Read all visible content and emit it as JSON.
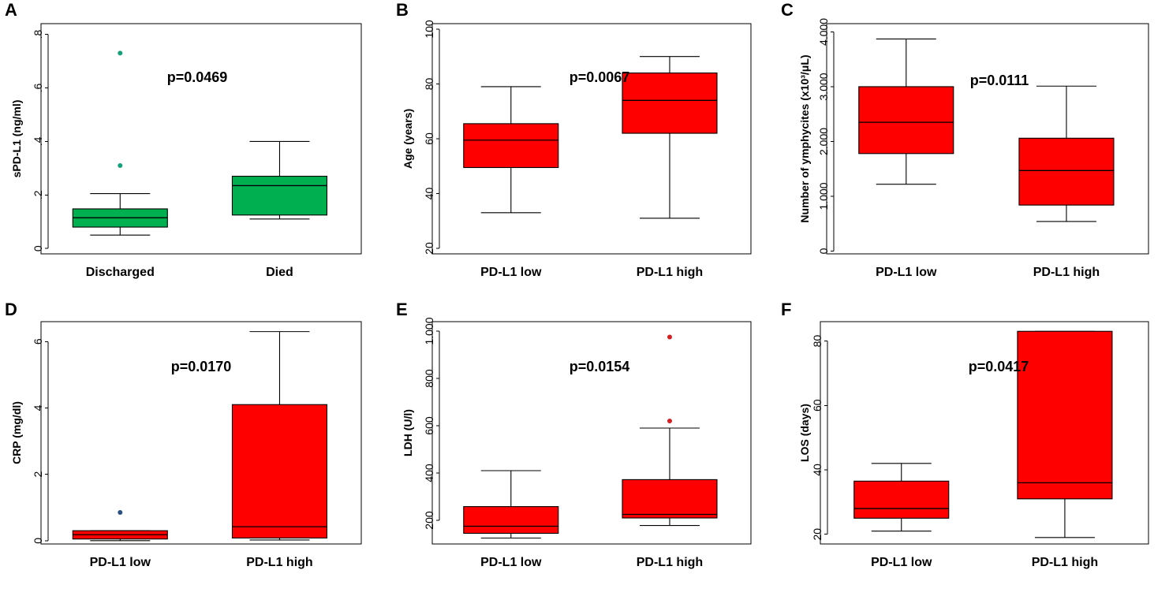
{
  "colors": {
    "green": "#00b050",
    "red": "#ff0000",
    "green_outlier": "#14a07a",
    "red_outlier": "#d42020",
    "blue_outlier": "#2a4f80"
  },
  "chart_data": [
    {
      "panel": "A",
      "type": "box",
      "ylabel": "sPD-L1 (ng/ml)",
      "ylim": [
        -0.02,
        0.84
      ],
      "ticks": [
        0,
        0.2,
        0.4,
        0.6,
        0.8
      ],
      "tick_labels": [
        "0",
        ".2",
        ".4",
        ".6",
        ".8"
      ],
      "categories": [
        "Discharged",
        "Died"
      ],
      "boxes": [
        {
          "min": 0.05,
          "q1": 0.08,
          "median": 0.115,
          "q3": 0.148,
          "max": 0.205,
          "outliers": [
            0.31,
            0.73
          ]
        },
        {
          "min": 0.11,
          "q1": 0.125,
          "median": 0.235,
          "q3": 0.27,
          "max": 0.4,
          "outliers": []
        }
      ],
      "fill": "green",
      "outlier_color": "green_outlier",
      "pvalue": "p=0.0469"
    },
    {
      "panel": "B",
      "type": "box",
      "ylabel": "Age (years)",
      "ylim": [
        18,
        102
      ],
      "ticks": [
        20,
        40,
        60,
        80,
        100
      ],
      "tick_labels": [
        "20",
        "40",
        "60",
        "80",
        "100"
      ],
      "categories": [
        "PD-L1 low",
        "PD-L1 high"
      ],
      "boxes": [
        {
          "min": 33,
          "q1": 49.5,
          "median": 59.5,
          "q3": 65.5,
          "max": 79,
          "outliers": []
        },
        {
          "min": 31,
          "q1": 62,
          "median": 74,
          "q3": 84,
          "max": 90,
          "outliers": []
        }
      ],
      "fill": "red",
      "outlier_color": "red_outlier",
      "pvalue": "p=0.0067"
    },
    {
      "panel": "C",
      "type": "box",
      "ylabel": "Number of ymphycites (x10³/μL)",
      "ylim": [
        -50,
        4150
      ],
      "ticks": [
        0,
        1000,
        2000,
        3000,
        4000
      ],
      "tick_labels": [
        "0",
        "1.000",
        "2.000",
        "3.000",
        "4.000"
      ],
      "categories": [
        "PD-L1 low",
        "PD-L1 high"
      ],
      "boxes": [
        {
          "min": 1220,
          "q1": 1780,
          "median": 2350,
          "q3": 3000,
          "max": 3870,
          "outliers": []
        },
        {
          "min": 540,
          "q1": 840,
          "median": 1470,
          "q3": 2060,
          "max": 3010,
          "outliers": []
        }
      ],
      "fill": "red",
      "outlier_color": "red_outlier",
      "pvalue": "p=0.0111"
    },
    {
      "panel": "D",
      "type": "box",
      "ylabel": "CRP (mg/dl)",
      "ylim": [
        -0.1,
        6.6
      ],
      "ticks": [
        0,
        2,
        4,
        6
      ],
      "tick_labels": [
        "0",
        "2",
        "4",
        "6"
      ],
      "categories": [
        "PD-L1 low",
        "PD-L1 high"
      ],
      "boxes": [
        {
          "min": 0.0,
          "q1": 0.05,
          "median": 0.18,
          "q3": 0.3,
          "max": 0.3,
          "outliers": [
            0.85
          ]
        },
        {
          "min": 0.02,
          "q1": 0.08,
          "median": 0.42,
          "q3": 4.1,
          "max": 6.3,
          "outliers": []
        }
      ],
      "fill": "red",
      "outlier_color": "blue_outlier",
      "pvalue": "p=0.0170"
    },
    {
      "panel": "E",
      "type": "box",
      "ylabel": "LDH (U/l)",
      "ylim": [
        100,
        1040
      ],
      "ticks": [
        200,
        400,
        600,
        800,
        1000
      ],
      "tick_labels": [
        "200",
        "400",
        "600",
        "800",
        "1.000"
      ],
      "categories": [
        "PD-L1 low",
        "PD-L1 high"
      ],
      "boxes": [
        {
          "min": 125,
          "q1": 145,
          "median": 175,
          "q3": 258,
          "max": 410,
          "outliers": []
        },
        {
          "min": 178,
          "q1": 210,
          "median": 225,
          "q3": 372,
          "max": 590,
          "outliers": [
            620,
            975
          ]
        }
      ],
      "fill": "red",
      "outlier_color": "red_outlier",
      "pvalue": "p=0.0154"
    },
    {
      "panel": "F",
      "type": "box",
      "ylabel": "LOS (days)",
      "ylim": [
        17,
        86
      ],
      "ticks": [
        20,
        40,
        60,
        80
      ],
      "tick_labels": [
        "20",
        "40",
        "60",
        "80"
      ],
      "categories": [
        "PD-L1 low",
        "PD-L1 high"
      ],
      "boxes": [
        {
          "min": 21,
          "q1": 25,
          "median": 28,
          "q3": 36.5,
          "max": 42,
          "outliers": []
        },
        {
          "min": 19,
          "q1": 31,
          "median": 36,
          "q3": 83,
          "max": 83,
          "outliers": []
        }
      ],
      "fill": "red",
      "outlier_color": "red_outlier",
      "pvalue": "p=0.0417"
    }
  ]
}
